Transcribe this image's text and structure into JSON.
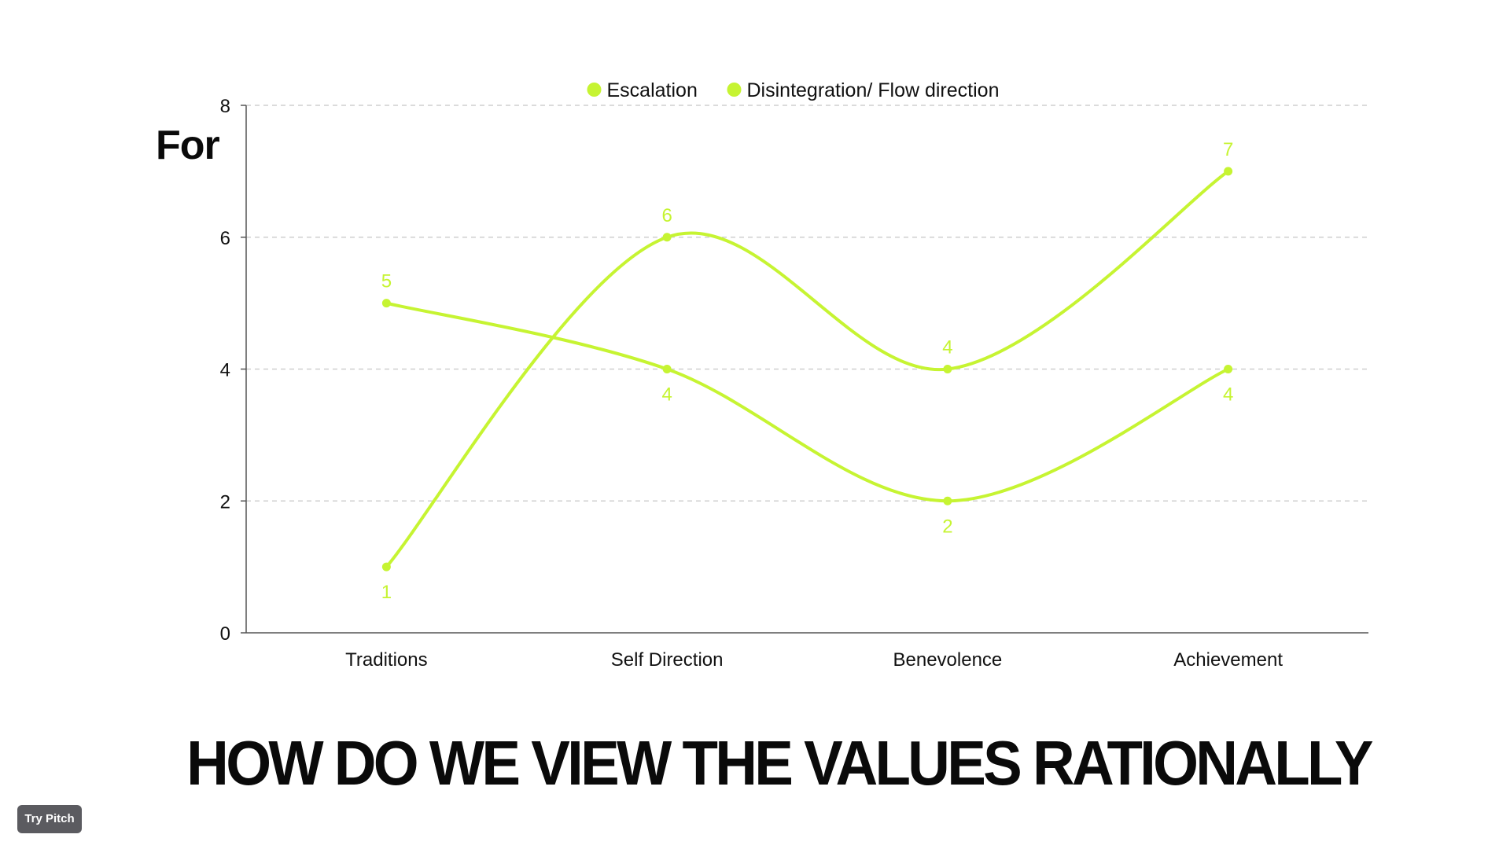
{
  "slide": {
    "side_label": "For",
    "headline": "HOW DO WE VIEW THE VALUES RATIONALLY",
    "try_pitch_label": "Try Pitch"
  },
  "colors": {
    "series": "#c6f432",
    "label": "#c6f432",
    "axis": "#555555",
    "grid": "#cfcfcf",
    "text": "#111111"
  },
  "chart_data": {
    "type": "line",
    "smooth": true,
    "categories": [
      "Traditions",
      "Self Direction",
      "Benevolence",
      "Achievement"
    ],
    "series": [
      {
        "name": "Escalation",
        "values": [
          1,
          6,
          4,
          7
        ]
      },
      {
        "name": "Disintegration/ Flow direction",
        "values": [
          5,
          4,
          2,
          4
        ]
      }
    ],
    "ylim": [
      0,
      8
    ],
    "yticks": [
      0,
      2,
      4,
      6,
      8
    ],
    "grid": true,
    "legend_position": "top-center",
    "data_labels": true
  }
}
